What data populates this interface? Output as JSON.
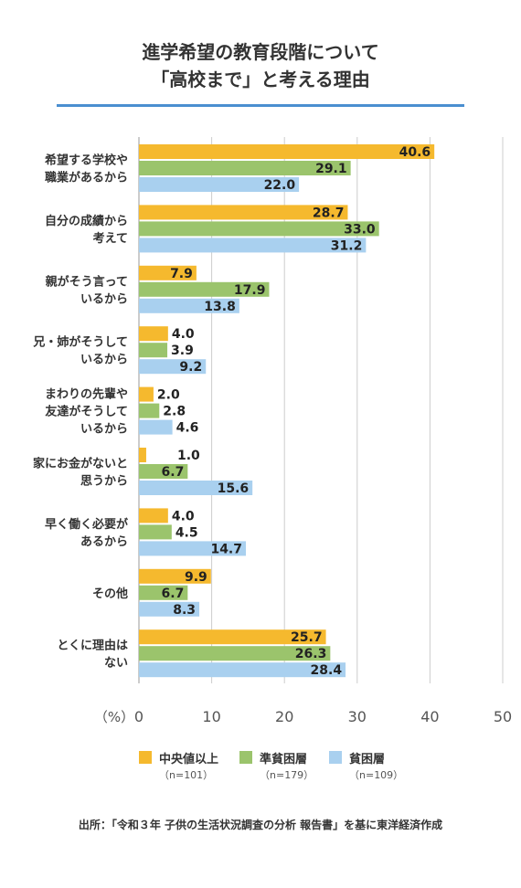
{
  "title_line1": "進学希望の教育段階について",
  "title_line2": "「高校まで」と考える理由",
  "source": "出所：「令和３年 子供の生活状況調査の分析 報告書」を基に東洋経済作成",
  "colors": {
    "series1": "#f5b92e",
    "series2": "#9bc46c",
    "series3": "#a9d0ef",
    "grid": "#cccccc",
    "title_rule": "#4a8fd0"
  },
  "chart_data": {
    "type": "bar",
    "orientation": "horizontal",
    "categories": [
      [
        "希望する学校や",
        "職業があるから"
      ],
      [
        "自分の成績から",
        "考えて"
      ],
      [
        "親がそう言って",
        "いるから"
      ],
      [
        "兄・姉がそうして",
        "いるから"
      ],
      [
        "まわりの先輩や",
        "友達がそうして",
        "いるから"
      ],
      [
        "家にお金がないと",
        "思うから"
      ],
      [
        "早く働く必要が",
        "あるから"
      ],
      [
        "その他"
      ],
      [
        "とくに理由は",
        "ない"
      ]
    ],
    "series": [
      {
        "name": "中央値以上",
        "n": "（n=101）",
        "values": [
          40.6,
          28.7,
          7.9,
          4.0,
          2.0,
          1.0,
          4.0,
          9.9,
          25.7
        ]
      },
      {
        "name": "準貧困層",
        "n": "（n=179）",
        "values": [
          29.1,
          33.0,
          17.9,
          3.9,
          2.8,
          6.7,
          4.5,
          6.7,
          26.3
        ]
      },
      {
        "name": "貧困層",
        "n": "（n=109）",
        "values": [
          22.0,
          31.2,
          13.8,
          9.2,
          4.6,
          15.6,
          14.7,
          8.3,
          28.4
        ]
      }
    ],
    "xlim": [
      0,
      50
    ],
    "xticks": [
      0,
      10,
      20,
      30,
      40,
      50
    ],
    "xunit": "（%）",
    "grid": true,
    "legend_position": "bottom"
  }
}
